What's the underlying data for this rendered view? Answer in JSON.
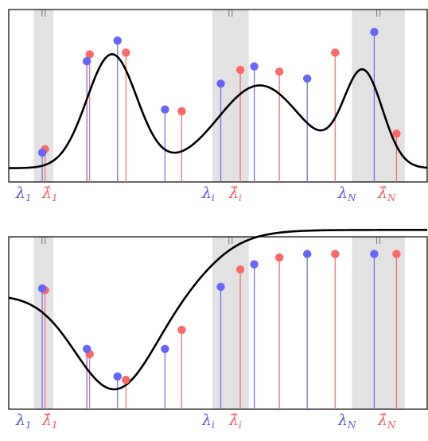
{
  "colors": {
    "blue": "#6666ff",
    "red": "#ff6666",
    "band": "#e2e2e2",
    "curve": "#000000",
    "frame": "#000000"
  },
  "panels": [
    {
      "curve": "multimodal",
      "blue_points": [
        [
          0.12,
          0.17
        ],
        [
          0.28,
          0.7
        ],
        [
          0.39,
          0.82
        ],
        [
          0.56,
          0.42
        ],
        [
          0.76,
          0.57
        ],
        [
          0.88,
          0.67
        ],
        [
          1.07,
          0.6
        ],
        [
          1.31,
          0.87
        ]
      ],
      "red_points": [
        [
          0.13,
          0.19
        ],
        [
          0.29,
          0.74
        ],
        [
          0.42,
          0.75
        ],
        [
          0.62,
          0.41
        ],
        [
          0.83,
          0.65
        ],
        [
          0.97,
          0.64
        ],
        [
          1.17,
          0.75
        ],
        [
          1.39,
          0.28
        ]
      ],
      "bands": [
        [
          0.09,
          0.16
        ],
        [
          0.73,
          0.86
        ],
        [
          1.23,
          1.42
        ]
      ],
      "labels": {
        "left": {
          "blue": "λ",
          "blue_sub": "1",
          "red": "λ̂",
          "red_sub": "1"
        },
        "mid": {
          "blue": "λ",
          "blue_sub": "i",
          "red": "λ̂",
          "red_sub": "i"
        },
        "right": {
          "blue": "λ",
          "blue_sub": "N",
          "red": "λ̂",
          "red_sub": "N"
        }
      }
    },
    {
      "curve": "sigmoid",
      "blue_points": [
        [
          0.12,
          0.7
        ],
        [
          0.28,
          0.35
        ],
        [
          0.39,
          0.19
        ],
        [
          0.56,
          0.35
        ],
        [
          0.76,
          0.71
        ],
        [
          0.88,
          0.84
        ],
        [
          1.07,
          0.9
        ],
        [
          1.31,
          0.9
        ]
      ],
      "red_points": [
        [
          0.13,
          0.69
        ],
        [
          0.29,
          0.32
        ],
        [
          0.42,
          0.17
        ],
        [
          0.62,
          0.46
        ],
        [
          0.83,
          0.81
        ],
        [
          0.97,
          0.88
        ],
        [
          1.17,
          0.9
        ],
        [
          1.39,
          0.9
        ]
      ],
      "bands": [
        [
          0.09,
          0.16
        ],
        [
          0.73,
          0.86
        ],
        [
          1.23,
          1.42
        ]
      ],
      "labels": {
        "left": {
          "blue": "λ",
          "blue_sub": "1",
          "red": "λ̂",
          "red_sub": "1"
        },
        "mid": {
          "blue": "λ",
          "blue_sub": "i",
          "red": "λ̂",
          "red_sub": "i"
        },
        "right": {
          "blue": "λ",
          "blue_sub": "N",
          "red": "λ̂",
          "red_sub": "N"
        }
      }
    }
  ]
}
